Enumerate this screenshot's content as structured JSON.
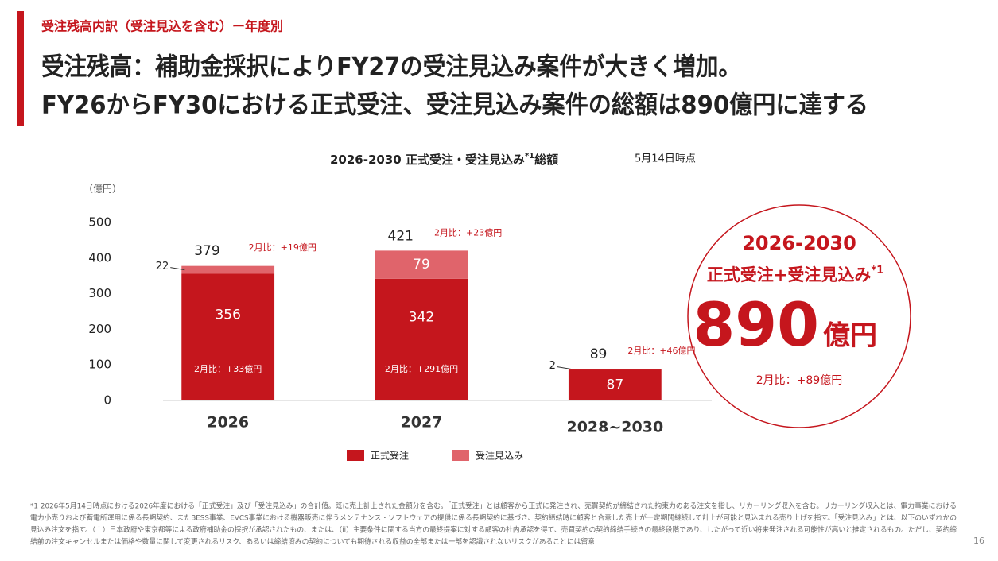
{
  "header": {
    "subtitle": "受注残高内訳（受注見込を含む）ー年度別",
    "title_lines": [
      "受注残高：補助金採択によりFY27の受注見込み案件が大きく増加。",
      "FY26からFY30における正式受注、受注見込み案件の総額は890億円に達する"
    ]
  },
  "chart_data": {
    "type": "stacked_bar",
    "title": "2026-2030 正式受注・受注見込み",
    "title_mark": "*1",
    "title_end": "総額",
    "as_of": "5月14日時点",
    "y_label": "（億円）",
    "categories": [
      "2026",
      "2027",
      "2028~2030"
    ],
    "series": [
      {
        "name": "正式受注",
        "color": "#c5161d",
        "values": [
          356,
          342,
          87
        ]
      },
      {
        "name": "受注見込み",
        "color": "#e0646b",
        "values": [
          22,
          79,
          2
        ]
      }
    ],
    "totals": [
      379,
      421,
      89
    ],
    "total_notes": [
      "2月比：+19億円",
      "2月比：+23億円",
      "2月比：+46億円"
    ],
    "inner_notes": [
      "2月比：+33億円",
      "2月比：+291億円",
      null
    ],
    "ylim": [
      0,
      500
    ],
    "yticks": [
      0,
      100,
      200,
      300,
      400,
      500
    ],
    "grid": false,
    "legend": "bottom"
  },
  "callout": {
    "period": "2026-2030",
    "line": "正式受注+受注見込み",
    "line_mark": "*1",
    "amount": "890",
    "unit": "億円",
    "note": "2月比：+89億円"
  },
  "footnote": [
    "*1 2026年5月14日時点における2026年度における「正式受注」及び「受注見込み」の合計値。既に売上計上された金額分を含む。「正式受注」とは顧客から正式に発注され、売買契約が締結された拘束力のある注文を指し、リカーリング収入を含む。リカーリング収入とは、電力事業における",
    "電力小売りおよび蓄電所運用に係る長期契約、またBESS事業、EVCS事業における機器販売に伴うメンテナンス・ソフトウェアの提供に係る長期契約に基づき、契約締結時に顧客と合意した売上が一定期間継続して計上が可能と見込まれる売り上げを指す。「受注見込み」とは、以下のいずれかの",
    "見込み注文を指す。（ｉ）日本政府や東京都等による政府補助金の採択が承認されたもの、または、（ii）主要条件に関する当方の最終提案に対する顧客の社内承認を得て、売買契約の契約締結手続きの最終段階であり、したがって近い将来発注される可能性が高いと推定されるもの。ただし、契約締",
    "結前の注文キャンセルまたは価格や数量に関して変更されるリスク、あるいは締結済みの契約についても期待される収益の全部または一部を認識されないリスクがあることには留意"
  ],
  "page_number": "16"
}
